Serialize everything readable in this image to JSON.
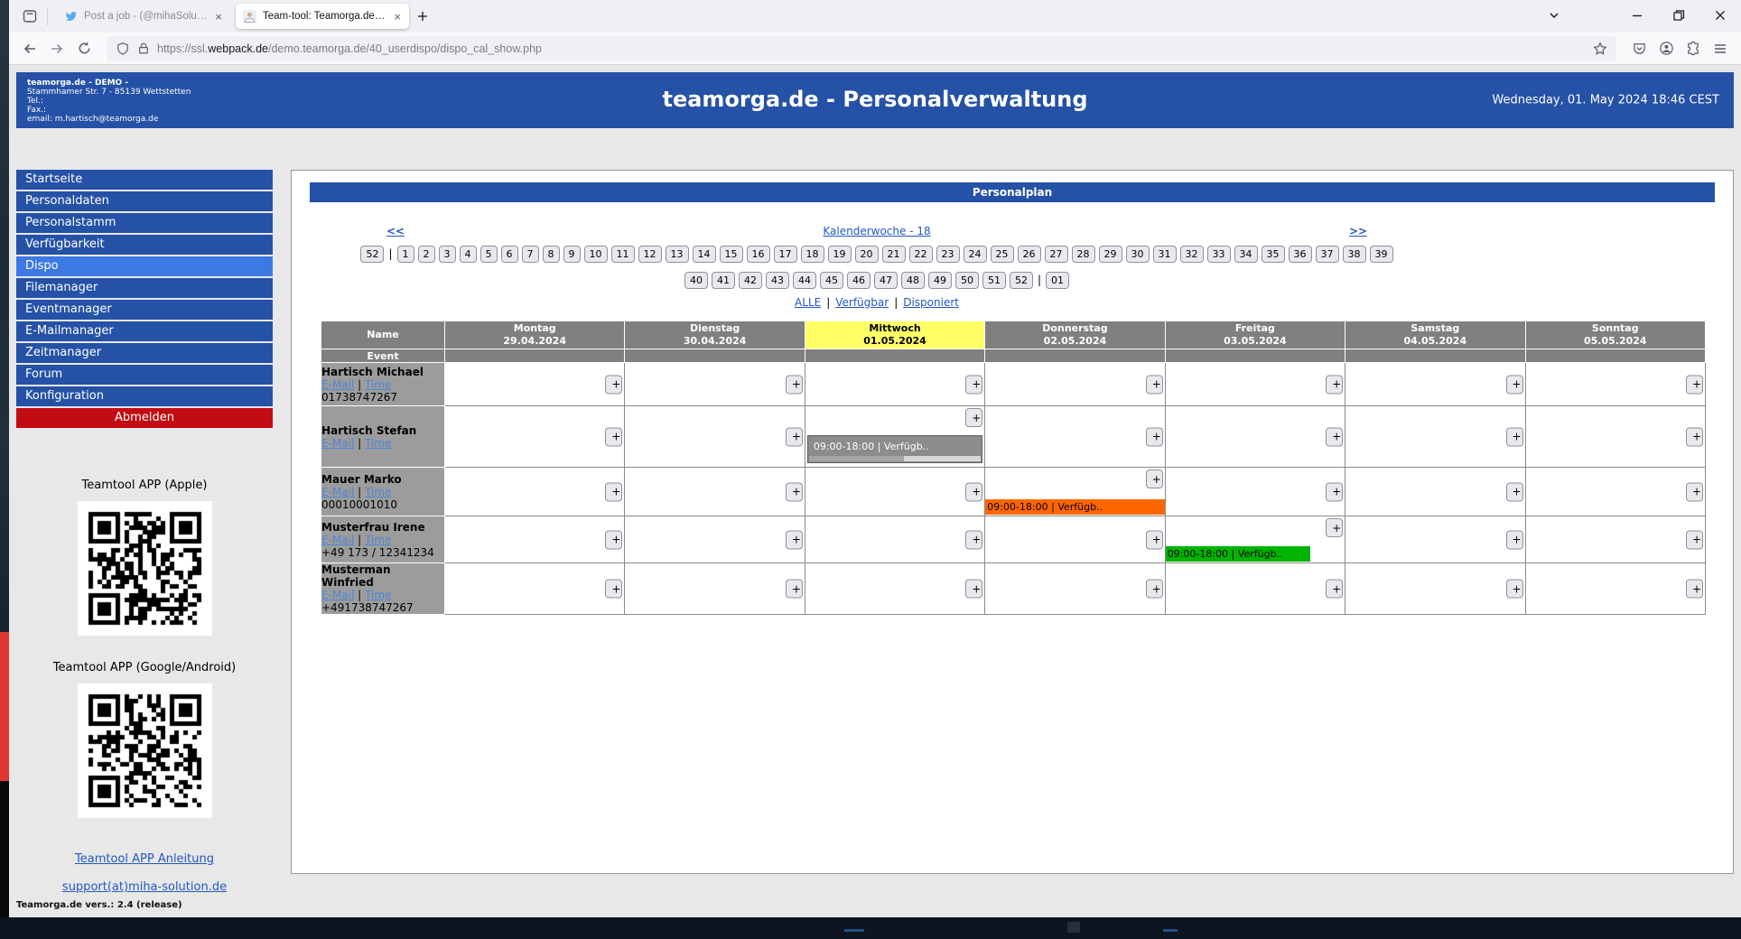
{
  "colors": {
    "blue": "#2551a6",
    "blue_active": "#3d79e2",
    "red": "#c20c14",
    "yellow": "#ffff66",
    "orange": "#ff6600",
    "green": "#00b400",
    "gray_header": "#808080",
    "gray_name": "#9c9c9c",
    "gray_event": "#8c8c8c",
    "link": "#2257c4",
    "link_light": "#4d86d8"
  },
  "browser": {
    "tabs": [
      {
        "title": "Post a job - (@mihaSolutions)",
        "active": false
      },
      {
        "title": "Team-tool: Teamorga.de Person",
        "active": true
      }
    ],
    "url_scheme": "https://ssl.",
    "url_domain": "webpack.de",
    "url_path": "/demo.teamorga.de/40_userdispo/dispo_cal_show.php"
  },
  "header": {
    "company": [
      "teamorga.de - DEMO -",
      "Stammhamer Str. 7 - 85139 Wettstetten",
      "Tel.:",
      "Fax.:",
      "email: m.hartisch@teamorga.de"
    ],
    "title": "teamorga.de - Personalverwaltung",
    "datetime": "Wednesday, 01. May 2024 18:46 CEST"
  },
  "sidebar": {
    "items": [
      {
        "label": "Startseite"
      },
      {
        "label": "Personaldaten"
      },
      {
        "label": "Personalstamm"
      },
      {
        "label": "Verfügbarkeit"
      },
      {
        "label": "Dispo",
        "active": true
      },
      {
        "label": "Filemanager"
      },
      {
        "label": "Eventmanager"
      },
      {
        "label": "E-Mailmanager"
      },
      {
        "label": "Zeitmanager"
      },
      {
        "label": "Forum"
      },
      {
        "label": "Konfiguration"
      }
    ],
    "logout": "Abmelden",
    "apps": [
      {
        "label": "Teamtool APP (Apple)"
      },
      {
        "label": "Teamtool APP (Google/Android)"
      }
    ],
    "links": [
      {
        "label": "Teamtool APP Anleitung"
      },
      {
        "label": "support(at)miha-solution.de"
      }
    ],
    "version": "Teamorga.de vers.: 2.4 (release)"
  },
  "main": {
    "panel_title": "Personalplan",
    "nav": {
      "prev": "<<",
      "label": "Kalenderwoche - 18",
      "next": ">>"
    },
    "weeks": {
      "row1": [
        "52",
        "|",
        "1",
        "2",
        "3",
        "4",
        "5",
        "6",
        "7",
        "8",
        "9",
        "10",
        "11",
        "12",
        "13",
        "14",
        "15",
        "16",
        "17",
        "18",
        "19",
        "20",
        "21",
        "22",
        "23",
        "24",
        "25",
        "26",
        "27",
        "28",
        "29",
        "30",
        "31",
        "32",
        "33",
        "34",
        "35",
        "36",
        "37",
        "38",
        "39"
      ],
      "row2": [
        "40",
        "41",
        "42",
        "43",
        "44",
        "45",
        "46",
        "47",
        "48",
        "49",
        "50",
        "51",
        "52",
        "|",
        "01"
      ]
    },
    "filters": [
      "ALLE",
      "Verfügbar",
      "Disponiert"
    ],
    "filter_separator": "|",
    "link_separator": "|",
    "table": {
      "name_header": "Name",
      "event_label": "Event",
      "add_label": "+",
      "days": [
        {
          "label": "Montag",
          "date": "29.04.2024"
        },
        {
          "label": "Dienstag",
          "date": "30.04.2024"
        },
        {
          "label": "Mittwoch",
          "date": "01.05.2024",
          "today": true
        },
        {
          "label": "Donnerstag",
          "date": "02.05.2024"
        },
        {
          "label": "Freitag",
          "date": "03.05.2024"
        },
        {
          "label": "Samstag",
          "date": "04.05.2024"
        },
        {
          "label": "Sonntag",
          "date": "05.05.2024"
        }
      ],
      "employees": [
        {
          "name": "Hartisch Michael",
          "links": [
            "E-Mail",
            "Time"
          ],
          "phone": "01738747267",
          "events": []
        },
        {
          "name": "Hartisch Stefan",
          "links": [
            "E-Mail",
            "Time"
          ],
          "phone": "",
          "events": [
            {
              "day": 2,
              "text": "09:00-18:00 | Verfügb..",
              "variant": "scroll"
            }
          ]
        },
        {
          "name": "Mauer Marko",
          "links": [
            "E-Mail",
            "Time"
          ],
          "phone": "00010001010",
          "events": [
            {
              "day": 3,
              "text": "09:00-18:00 | Verfügb..",
              "variant": "full"
            }
          ]
        },
        {
          "name": "Musterfrau Irene",
          "links": [
            "E-Mail",
            "Time"
          ],
          "phone": "+49 173 / 12341234",
          "events": [
            {
              "day": 4,
              "text": "09:00-18:00 | Verfügb..",
              "variant": "part"
            }
          ]
        },
        {
          "name": "Musterman Winfried",
          "links": [
            "E-Mail",
            "Time"
          ],
          "phone": "+491738747267",
          "events": []
        }
      ]
    }
  }
}
